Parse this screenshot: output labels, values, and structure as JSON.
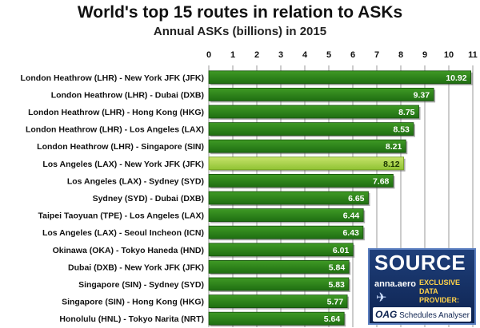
{
  "chart_data": {
    "type": "bar",
    "orientation": "horizontal",
    "title": "World's top 15 routes in relation to ASKs",
    "subtitle": "Annual ASKs (billions) in 2015",
    "categories": [
      "London Heathrow (LHR) - New York JFK (JFK)",
      "London Heathrow (LHR) - Dubai (DXB)",
      "London Heathrow (LHR) - Hong Kong (HKG)",
      "London Heathrow (LHR) - Los Angeles (LAX)",
      "London Heathrow (LHR) - Singapore (SIN)",
      "Los Angeles (LAX) - New York JFK (JFK)",
      "Los Angeles (LAX) - Sydney (SYD)",
      "Sydney (SYD) - Dubai (DXB)",
      "Taipei Taoyuan (TPE) - Los Angeles (LAX)",
      "Los Angeles (LAX) - Seoul Incheon (ICN)",
      "Okinawa (OKA) - Tokyo Haneda (HND)",
      "Dubai (DXB) - New York JFK (JFK)",
      "Singapore (SIN) - Sydney (SYD)",
      "Singapore (SIN) - Hong Kong (HKG)",
      "Honolulu (HNL) - Tokyo Narita (NRT)"
    ],
    "values": [
      10.92,
      9.37,
      8.75,
      8.53,
      8.21,
      8.12,
      7.68,
      6.65,
      6.44,
      6.43,
      6.01,
      5.84,
      5.83,
      5.77,
      5.64
    ],
    "value_labels": [
      "10.92",
      "9.37",
      "8.75",
      "8.53",
      "8.21",
      "8.12",
      "7.68",
      "6.65",
      "6.44",
      "6.43",
      "6.01",
      "5.84",
      "5.83",
      "5.77",
      "5.64"
    ],
    "highlight_index": 5,
    "xlim": [
      0,
      11
    ],
    "xticks": [
      "0",
      "1",
      "2",
      "3",
      "4",
      "5",
      "6",
      "7",
      "8",
      "9",
      "10",
      "11"
    ],
    "xaxis_position": "top",
    "grid": true,
    "colors": {
      "bar": "#1f6e12",
      "bar_light": "#3f9a25",
      "highlight": "#8fc233",
      "highlight_light": "#c6e36a",
      "grid": "#999999"
    }
  },
  "source": {
    "label": "SOURCE",
    "brand": "anna.aero",
    "note_line1": "EXCLUSIVE",
    "note_line2": "DATA PROVIDER:",
    "oag_logo": "OAG",
    "oag_text": "Schedules Analyser"
  }
}
